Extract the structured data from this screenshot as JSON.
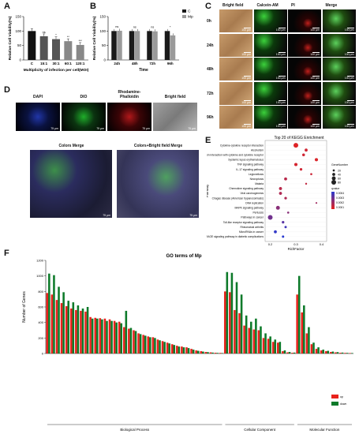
{
  "panels": {
    "A": {
      "label": "A",
      "ylabel": "Relative Cell Viability(%)",
      "xlabel": "Multiplicity of infection per cell(MOI)",
      "yticks": [
        "150",
        "100",
        "50",
        "0"
      ],
      "categories": [
        "C",
        "15:1",
        "30:1",
        "60:1",
        "120:1"
      ],
      "sig": [
        "",
        "ns",
        "*",
        "**",
        "***"
      ]
    },
    "B": {
      "label": "B",
      "ylabel": "Relative Cell Viability(%)",
      "xlabel": "Time",
      "yticks": [
        "150",
        "100",
        "50",
        "0"
      ],
      "categories": [
        "24h",
        "48h",
        "72h",
        "96h"
      ],
      "legend": [
        "C",
        "Mp"
      ],
      "sig": [
        "ns",
        "ns",
        "ns",
        "*"
      ]
    },
    "C": {
      "label": "C",
      "columns": [
        "Bright field",
        "Calcein-AM",
        "PI",
        "Merge"
      ],
      "rows": [
        "0h",
        "24h",
        "48h",
        "72h",
        "96h"
      ],
      "scale": "100 μm"
    },
    "D": {
      "label": "D",
      "top": [
        "DAPI",
        "DIO",
        "Rhodamine-\nPhalloidin",
        "Bright field"
      ],
      "bottom": [
        "Colors Merge",
        "Colors+Bright field  Merge"
      ],
      "scale": "75 μm"
    },
    "E": {
      "label": "E",
      "title": "Top 20 of KEGG Enrichment",
      "ylabel": "Pathway",
      "xlabel": "RichFactor",
      "xticks": [
        "0.2",
        "0.3",
        "0.4"
      ],
      "pathways": [
        "Cytokine-cytokine receptor interaction",
        "Alcoholism",
        "Viral protein interaction with cytokine and cytokine receptor",
        "Systemic lupus erythematosus",
        "TNF signaling pathway",
        "IL-17 signaling pathway",
        "Legionellosis",
        "Necroptosis",
        "Malaria",
        "Chemokine signaling pathway",
        "Viral carcinogenesis",
        "Chagas disease (American trypanosomiasis)",
        "DNA replication",
        "MAPK signaling pathway",
        "Pertussis",
        "Pathways in cancer",
        "Toll-like receptor signaling pathway",
        "Rheumatoid arthritis",
        "MicroRNAs in cancer",
        "AGE-RAGE signaling pathway in diabetic complications"
      ],
      "legend_count_title": "GeneNumber",
      "legend_count": [
        "20",
        "40",
        "60",
        "80"
      ],
      "legend_q_title": "qvalue",
      "legend_q": [
        "0.0004",
        "0.0003",
        "0.0002",
        "0.0001"
      ]
    },
    "F": {
      "label": "F",
      "title": "GO terms of Mp",
      "ylabel": "Number of Genes",
      "yticks": [
        "1200",
        "1000",
        "800",
        "600",
        "400",
        "200",
        "0"
      ],
      "groups": [
        "Biological Process",
        "Cellular Component",
        "Molecular Function"
      ],
      "legend": [
        "up",
        "down"
      ]
    }
  },
  "chart_data": [
    {
      "type": "bar",
      "panel": "A",
      "categories": [
        "C",
        "15:1",
        "30:1",
        "60:1",
        "120:1"
      ],
      "values": [
        100,
        82,
        72,
        65,
        52
      ],
      "ylim": [
        0,
        150
      ]
    },
    {
      "type": "bar",
      "panel": "B",
      "categories": [
        "24h",
        "48h",
        "72h",
        "96h"
      ],
      "series": [
        {
          "name": "C",
          "values": [
            100,
            100,
            100,
            100
          ]
        },
        {
          "name": "Mp",
          "values": [
            101,
            100,
            99,
            85
          ]
        }
      ],
      "ylim": [
        0,
        150
      ]
    },
    {
      "type": "scatter",
      "panel": "E",
      "y": [
        "Cytokine-cytokine receptor interaction",
        "Alcoholism",
        "Viral protein interaction with cytokine and cytokine receptor",
        "Systemic lupus erythematosus",
        "TNF signaling pathway",
        "IL-17 signaling pathway",
        "Legionellosis",
        "Necroptosis",
        "Malaria",
        "Chemokine signaling pathway",
        "Viral carcinogenesis",
        "Chagas disease (American trypanosomiasis)",
        "DNA replication",
        "MAPK signaling pathway",
        "Pertussis",
        "Pathways in cancer",
        "Toll-like receptor signaling pathway",
        "Rheumatoid arthritis",
        "MicroRNAs in cancer",
        "AGE-RAGE signaling pathway in diabetic complications"
      ],
      "x": [
        0.3,
        0.34,
        0.33,
        0.38,
        0.3,
        0.32,
        0.36,
        0.26,
        0.34,
        0.24,
        0.24,
        0.26,
        0.38,
        0.23,
        0.27,
        0.2,
        0.25,
        0.26,
        0.22,
        0.25
      ],
      "gene_number": [
        80,
        40,
        35,
        45,
        45,
        30,
        20,
        40,
        15,
        40,
        40,
        30,
        10,
        60,
        20,
        80,
        30,
        25,
        40,
        25
      ],
      "qvalue": [
        2e-05,
        5e-05,
        5e-05,
        3e-05,
        4e-05,
        5e-05,
        6e-05,
        0.0001,
        8e-05,
        0.0001,
        0.00012,
        0.00012,
        0.00015,
        0.0002,
        0.0002,
        0.00025,
        0.0003,
        0.00035,
        0.00038,
        0.0004
      ],
      "xlim": [
        0.18,
        0.42
      ]
    },
    {
      "type": "bar",
      "panel": "F",
      "series": [
        {
          "name": "up",
          "values": [
            780,
            760,
            690,
            650,
            610,
            580,
            560,
            550,
            540,
            470,
            460,
            455,
            450,
            440,
            420,
            410,
            340,
            320,
            300,
            260,
            240,
            220,
            210,
            180,
            160,
            140,
            120,
            100,
            90,
            80,
            60,
            40,
            30,
            20,
            15,
            10,
            8,
            800,
            790,
            560,
            520,
            360,
            330,
            310,
            300,
            200,
            190,
            150,
            140,
            30,
            15,
            10,
            760,
            530,
            260,
            120,
            60,
            40,
            30,
            20,
            15,
            10,
            8,
            6
          ]
        },
        {
          "name": "down",
          "values": [
            1030,
            1010,
            860,
            790,
            680,
            660,
            620,
            580,
            600,
            450,
            450,
            440,
            420,
            420,
            400,
            390,
            550,
            330,
            290,
            250,
            230,
            210,
            200,
            170,
            150,
            130,
            110,
            90,
            80,
            70,
            50,
            35,
            25,
            18,
            12,
            8,
            6,
            1050,
            1040,
            920,
            760,
            490,
            410,
            450,
            350,
            260,
            220,
            180,
            150,
            40,
            20,
            12,
            1000,
            620,
            340,
            140,
            80,
            50,
            35,
            25,
            18,
            12,
            8,
            6
          ]
        }
      ],
      "ylim": [
        0,
        1200
      ]
    }
  ],
  "colors": {
    "up": "#e8221c",
    "down": "#0d7a2a",
    "dark_bar": "#1a1a1a",
    "grey_bar": "#9a9a9a",
    "red_dot": "#e8231e",
    "blue_dot": "#2a3bd1"
  }
}
